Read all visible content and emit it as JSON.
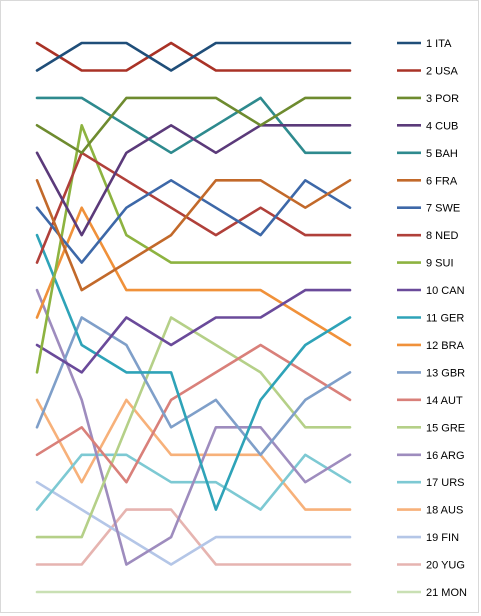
{
  "chart_data": {
    "type": "line",
    "title": "",
    "xlabel": "",
    "ylabel": "",
    "x": [
      1,
      2,
      3,
      4,
      5,
      6,
      7,
      8
    ],
    "ylim": [
      1,
      21
    ],
    "y_inverted": true,
    "grid": false,
    "legend_position": "right",
    "series": [
      {
        "name": "1 ITA",
        "color": "#1f4e79",
        "values": [
          2,
          1,
          1,
          2,
          1,
          1,
          1,
          1
        ]
      },
      {
        "name": "2 USA",
        "color": "#a93226",
        "values": [
          1,
          2,
          2,
          1,
          2,
          2,
          2,
          2
        ]
      },
      {
        "name": "3 POR",
        "color": "#6e8b2f",
        "values": [
          4,
          5,
          3,
          3,
          3,
          4,
          3,
          3
        ]
      },
      {
        "name": "4 CUB",
        "color": "#5b3a7a",
        "values": [
          5,
          8,
          5,
          4,
          5,
          4,
          4,
          4
        ]
      },
      {
        "name": "5 BAH",
        "color": "#2e8a8e",
        "values": [
          3,
          3,
          4,
          5,
          4,
          3,
          5,
          5
        ]
      },
      {
        "name": "6 FRA",
        "color": "#c2692a",
        "values": [
          6,
          10,
          9,
          8,
          6,
          6,
          7,
          6
        ]
      },
      {
        "name": "7 SWE",
        "color": "#3d68a8",
        "values": [
          7,
          9,
          7,
          6,
          7,
          8,
          6,
          7
        ]
      },
      {
        "name": "8 NED",
        "color": "#b0403a",
        "values": [
          9,
          5,
          6,
          7,
          8,
          7,
          8,
          8
        ]
      },
      {
        "name": "9 SUI",
        "color": "#8db340",
        "values": [
          13,
          4,
          8,
          9,
          9,
          9,
          9,
          9
        ]
      },
      {
        "name": "10 CAN",
        "color": "#6a4a9a",
        "values": [
          12,
          13,
          11,
          12,
          11,
          11,
          10,
          10
        ]
      },
      {
        "name": "11 GER",
        "color": "#2ea3b8",
        "values": [
          8,
          12,
          13,
          13,
          18,
          14,
          12,
          11
        ]
      },
      {
        "name": "12 BRA",
        "color": "#f0913a",
        "values": [
          11,
          7,
          10,
          10,
          10,
          10,
          11,
          12
        ]
      },
      {
        "name": "13 GBR",
        "color": "#7f9fc9",
        "values": [
          15,
          11,
          12,
          15,
          14,
          16,
          14,
          13
        ]
      },
      {
        "name": "14 AUT",
        "color": "#d9807a",
        "values": [
          16,
          15,
          17,
          14,
          13,
          12,
          13,
          14
        ]
      },
      {
        "name": "15 GRE",
        "color": "#b5d088",
        "values": [
          19,
          19,
          15,
          11,
          12,
          13,
          15,
          15
        ]
      },
      {
        "name": "16 ARG",
        "color": "#9e8cbe",
        "values": [
          10,
          14,
          20,
          19,
          15,
          15,
          17,
          16
        ]
      },
      {
        "name": "17 URS",
        "color": "#7dc9d3",
        "values": [
          18,
          16,
          16,
          17,
          17,
          18,
          16,
          17
        ]
      },
      {
        "name": "18 AUS",
        "color": "#f7b17a",
        "values": [
          14,
          17,
          14,
          16,
          16,
          16,
          18,
          18
        ]
      },
      {
        "name": "19 FIN",
        "color": "#b4c6e7",
        "values": [
          17,
          18,
          19,
          20,
          19,
          19,
          19,
          19
        ]
      },
      {
        "name": "20 YUG",
        "color": "#e6b4b0",
        "values": [
          20,
          20,
          18,
          18,
          20,
          20,
          20,
          20
        ]
      },
      {
        "name": "21 MON",
        "color": "#c9e0b4",
        "values": [
          21,
          21,
          21,
          21,
          21,
          21,
          21,
          21
        ]
      }
    ]
  }
}
